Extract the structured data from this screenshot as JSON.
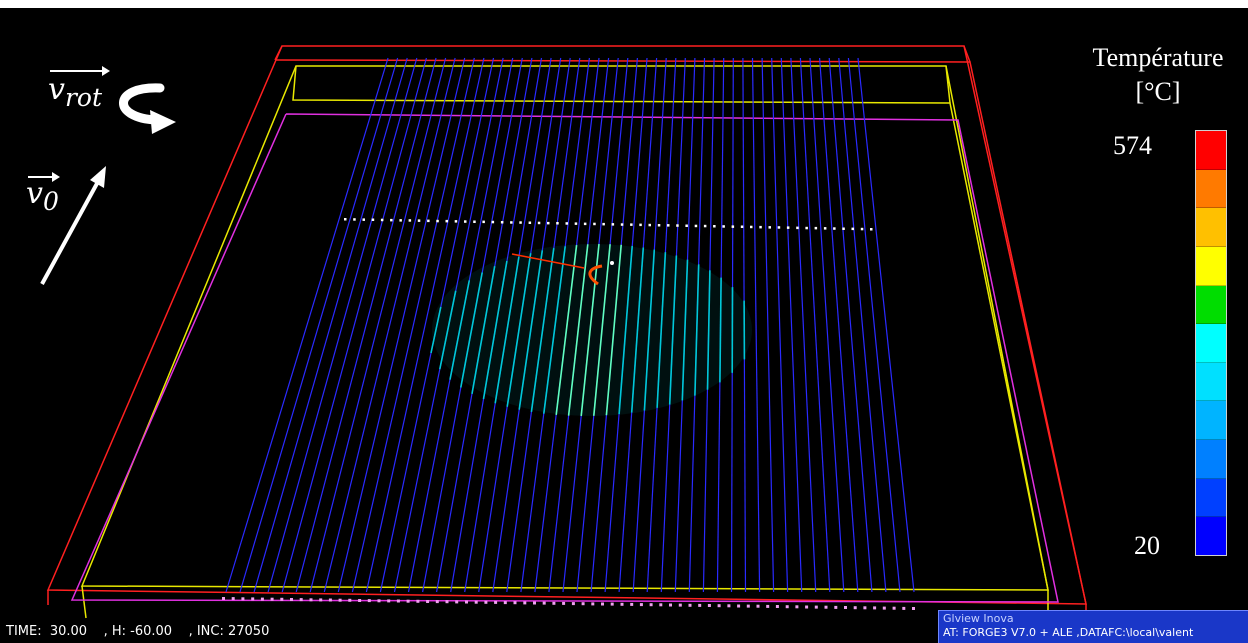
{
  "legend": {
    "title": "Température",
    "unit": "[°C]",
    "max_label": "574",
    "min_label": "20",
    "colors": [
      "#ff0000",
      "#ff7a00",
      "#ffc000",
      "#ffff00",
      "#00dd00",
      "#00ffff",
      "#00e0ff",
      "#00b4ff",
      "#0080ff",
      "#0040ff",
      "#0000ff"
    ]
  },
  "vectors": {
    "rotation_label": "v",
    "rotation_subscript": "rot",
    "translation_label": "v",
    "translation_subscript": "0"
  },
  "status": {
    "text": "TIME:  30.00    , H: -60.00    , INC: 27050"
  },
  "info_panel": {
    "title": "Glview Inova",
    "line": "AT:    FORGE3 V7.0 + ALE ,DATAFC:\\local\\valent"
  },
  "colors": {
    "outer_box": "#ff2020",
    "inner_box": "#e8e800",
    "plate_edge": "#e030e0",
    "grid_lines": "#2a2aff",
    "hot_zone": "#00d8d8",
    "tool_path": "#ff3000",
    "sensor_dots_top": "#ffffff",
    "sensor_dots_bottom": "#f0a0f0"
  }
}
